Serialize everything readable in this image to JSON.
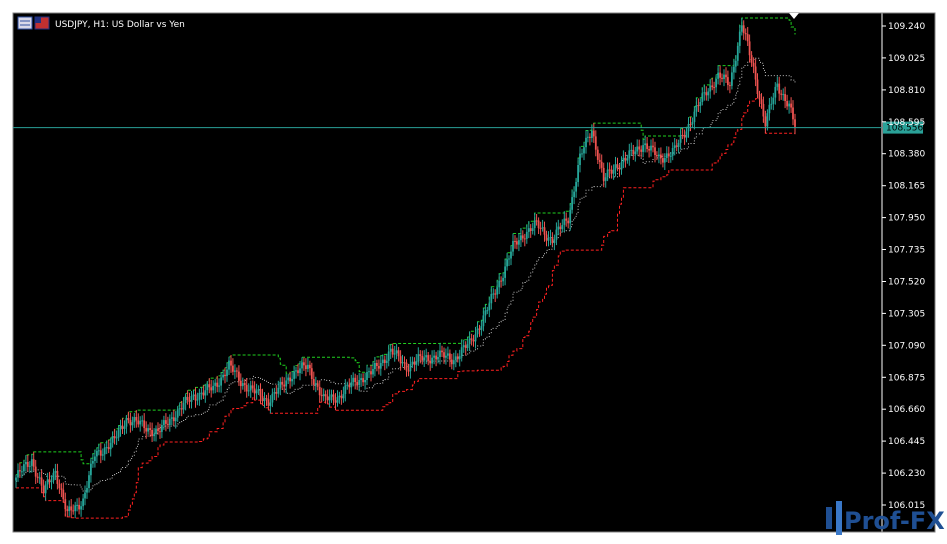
{
  "window": {
    "title": "USDJPY, H1:  US Dollar vs Yen",
    "icons": [
      "chart-menu-icon",
      "flag-icon"
    ]
  },
  "colors": {
    "background": "#000000",
    "frame": "#ffffff",
    "bull": "#26a69a",
    "bear": "#ef5350",
    "upper_band": "#1fcf1f",
    "lower_band": "#ff2020",
    "middle_band": "#c0c0c0",
    "price_line": "#2aa198",
    "axis_text": "#ffffff",
    "logo": "#1f4f93"
  },
  "watermark": {
    "text": "Prof-FX"
  },
  "chart_data": {
    "type": "candlestick",
    "symbol": "USDJPY",
    "timeframe": "H1",
    "y_ticks": [
      "109.240",
      "109.025",
      "108.810",
      "108.595",
      "108.380",
      "108.165",
      "107.950",
      "107.735",
      "107.520",
      "107.305",
      "107.090",
      "106.875",
      "106.660",
      "106.445",
      "106.230",
      "106.015"
    ],
    "ylim": [
      105.9,
      109.3
    ],
    "current_price": "108.556",
    "series": [
      {
        "name": "Candles",
        "anchors": [
          [
            0,
            106.2
          ],
          [
            8,
            106.32
          ],
          [
            14,
            106.1
          ],
          [
            20,
            106.25
          ],
          [
            26,
            105.95
          ],
          [
            34,
            106.05
          ],
          [
            40,
            106.35
          ],
          [
            50,
            106.45
          ],
          [
            56,
            106.6
          ],
          [
            64,
            106.55
          ],
          [
            72,
            106.5
          ],
          [
            80,
            106.62
          ],
          [
            90,
            106.75
          ],
          [
            100,
            106.8
          ],
          [
            108,
            106.95
          ],
          [
            114,
            106.85
          ],
          [
            120,
            106.78
          ],
          [
            128,
            106.72
          ],
          [
            134,
            106.8
          ],
          [
            140,
            106.9
          ],
          [
            148,
            106.95
          ],
          [
            156,
            106.72
          ],
          [
            164,
            106.75
          ],
          [
            172,
            106.85
          ],
          [
            180,
            106.9
          ],
          [
            190,
            107.05
          ],
          [
            198,
            106.95
          ],
          [
            206,
            107.0
          ],
          [
            214,
            107.02
          ],
          [
            222,
            107.0
          ],
          [
            230,
            107.1
          ],
          [
            238,
            107.3
          ],
          [
            246,
            107.55
          ],
          [
            252,
            107.75
          ],
          [
            258,
            107.85
          ],
          [
            264,
            107.9
          ],
          [
            272,
            107.8
          ],
          [
            280,
            107.95
          ],
          [
            286,
            108.35
          ],
          [
            292,
            108.55
          ],
          [
            298,
            108.2
          ],
          [
            304,
            108.3
          ],
          [
            310,
            108.35
          ],
          [
            318,
            108.45
          ],
          [
            326,
            108.35
          ],
          [
            334,
            108.4
          ],
          [
            340,
            108.55
          ],
          [
            350,
            108.8
          ],
          [
            356,
            108.9
          ],
          [
            362,
            108.85
          ],
          [
            368,
            109.25
          ],
          [
            374,
            108.95
          ],
          [
            380,
            108.58
          ],
          [
            386,
            108.85
          ],
          [
            392,
            108.7
          ],
          [
            395,
            108.56
          ]
        ]
      },
      {
        "name": "Upper band"
      },
      {
        "name": "Lower band"
      },
      {
        "name": "Middle"
      }
    ]
  }
}
